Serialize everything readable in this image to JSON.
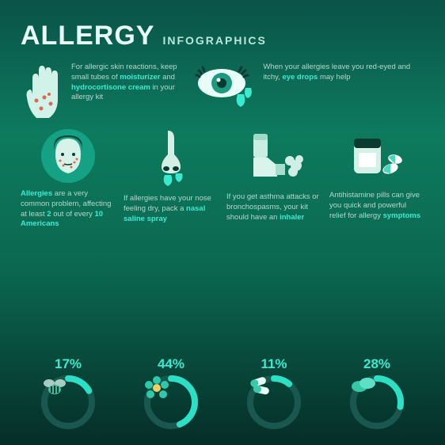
{
  "title_main": "ALLERGY",
  "title_sub": "INFOGRAPHICS",
  "colors": {
    "bg_top": "#0a5348",
    "bg_mid": "#0d7a5e",
    "bg_low": "#052e28",
    "accent": "#3aead0",
    "text_dim": "#b4d8cc",
    "text_bright": "#e8fff8",
    "ring_track": "#19524b",
    "icon_light": "#d8f8ef",
    "icon_mid": "#87d9c1"
  },
  "typography": {
    "title_size": 34,
    "subtitle_size": 14,
    "body_size": 9.5,
    "pct_size": 17
  },
  "top_cells": [
    {
      "icon": "hand",
      "text_pre": "For allergic skin reactions, keep small tubes of ",
      "hl1": "moisturizer",
      "mid": " and ",
      "hl2": "hydrocortisone cream",
      "text_post": " in your allergy kit"
    },
    {
      "icon": "eye",
      "text_pre": "When your allergies leave you red-eyed and itchy, ",
      "hl1": "eye drops",
      "mid": "",
      "hl2": "",
      "text_post": " may help"
    }
  ],
  "mid_cells": [
    {
      "icon": "face",
      "pre": "",
      "hl": "Allergies",
      "post": " are a very common problem, affecting at least ",
      "hl2": "2",
      "post2": " out of every ",
      "hl3": "10 Americans",
      "post3": ""
    },
    {
      "icon": "nose",
      "pre": "If allergies have your nose feeling dry, pack a ",
      "hl": "nasal saline spray",
      "post": "",
      "hl2": "",
      "post2": "",
      "hl3": "",
      "post3": ""
    },
    {
      "icon": "inhaler",
      "pre": "If you get asthma attacks or bronchospasms, your kit should have an ",
      "hl": "inhaler",
      "post": "",
      "hl2": "",
      "post2": "",
      "hl3": "",
      "post3": ""
    },
    {
      "icon": "pills",
      "pre": "Antihistamine pills can give you quick and powerful relief for allergy ",
      "hl": "symptoms",
      "post": "",
      "hl2": "",
      "post2": "",
      "hl3": "",
      "post3": ""
    }
  ],
  "stats": [
    {
      "pct": "17%",
      "value": 17,
      "icon": "bee",
      "label": "insect"
    },
    {
      "pct": "44%",
      "value": 44,
      "icon": "flower",
      "label": "pollen"
    },
    {
      "pct": "11%",
      "value": 11,
      "icon": "capsules",
      "label": "drugs"
    },
    {
      "pct": "28%",
      "value": 28,
      "icon": "beans",
      "label": "food"
    }
  ],
  "donut": {
    "radius": 30,
    "stroke": 8,
    "track": "#1a574f",
    "fill": "#2be0c4"
  }
}
